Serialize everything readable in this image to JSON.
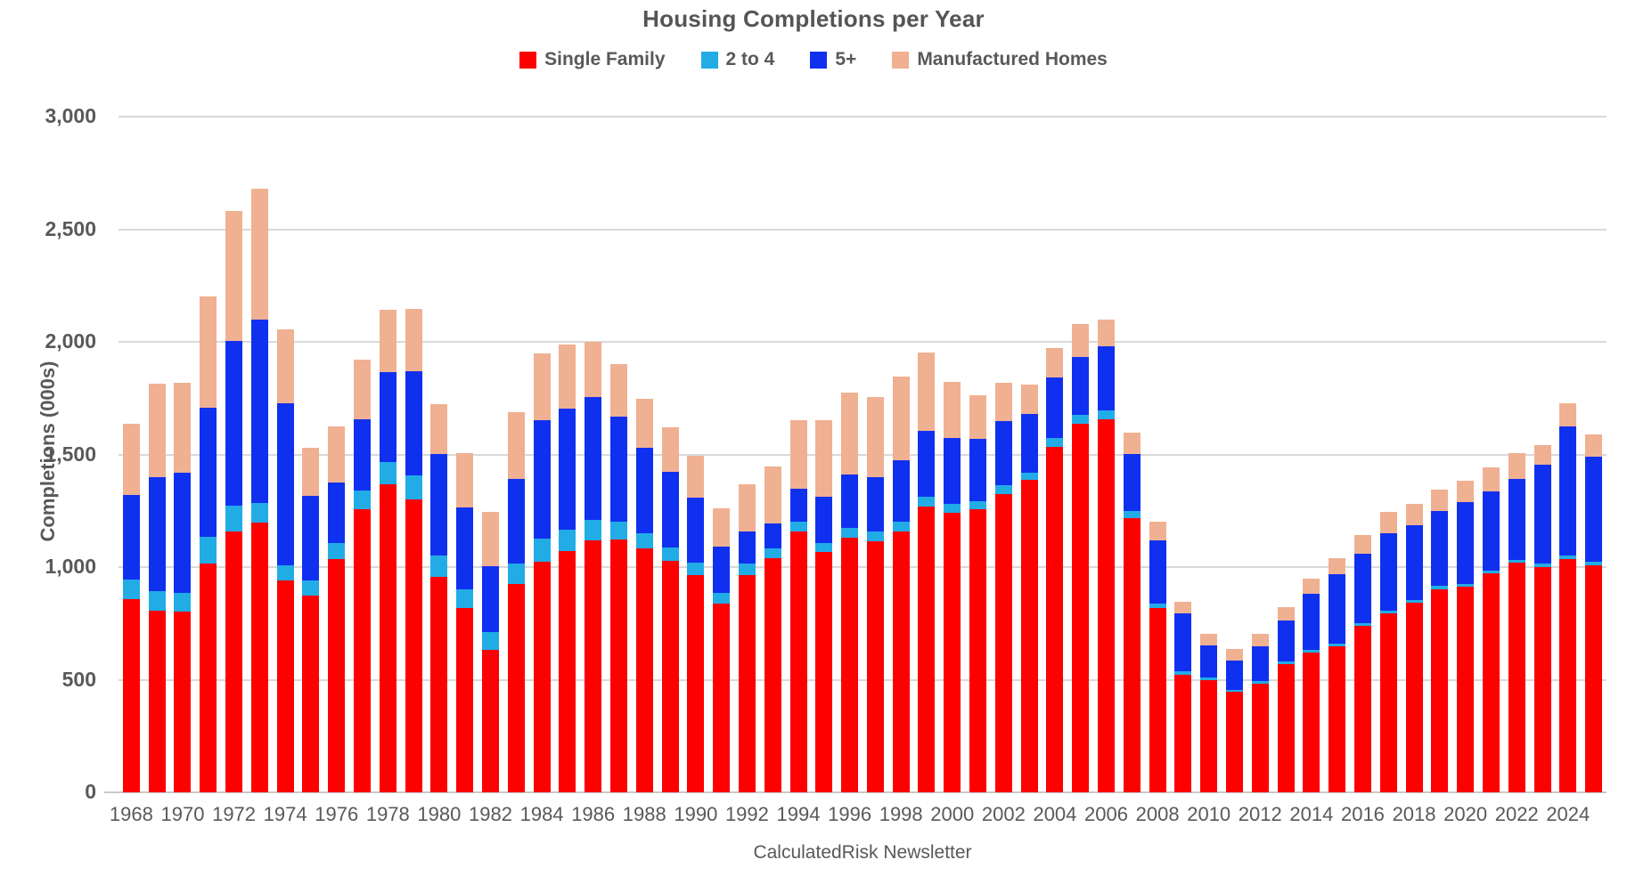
{
  "header": {
    "title": "Housing Completions per Year"
  },
  "legend": {
    "items": [
      {
        "label": "Single Family",
        "color": "#fe0000"
      },
      {
        "label": "2 to 4",
        "color": "#22ace6"
      },
      {
        "label": "5+",
        "color": "#1030f0"
      },
      {
        "label": "Manufactured Homes",
        "color": "#f0b092"
      }
    ]
  },
  "y_axis": {
    "title": "Completions (000s)",
    "ticks": [
      "3,000",
      "2,500",
      "2,000",
      "1,500",
      "1,000",
      "500",
      "0"
    ],
    "max": 3000,
    "step": 500
  },
  "x_axis": {
    "labeled_years": [
      1968,
      1970,
      1972,
      1974,
      1976,
      1978,
      1980,
      1982,
      1984,
      1986,
      1988,
      1990,
      1992,
      1994,
      1996,
      1998,
      2000,
      2002,
      2004,
      2006,
      2008,
      2010,
      2012,
      2014,
      2016,
      2018,
      2020,
      2022,
      2024
    ]
  },
  "footer": {
    "source": "CalculatedRisk Newsletter"
  },
  "chart_data": {
    "type": "bar",
    "stacked": true,
    "title": "Housing Completions per Year",
    "xlabel": "CalculatedRisk Newsletter",
    "ylabel": "Completions (000s)",
    "ylim": [
      0,
      3000
    ],
    "grid": true,
    "legend_position": "top",
    "categories": [
      1968,
      1969,
      1970,
      1971,
      1972,
      1973,
      1974,
      1975,
      1976,
      1977,
      1978,
      1979,
      1980,
      1981,
      1982,
      1983,
      1984,
      1985,
      1986,
      1987,
      1988,
      1989,
      1990,
      1991,
      1992,
      1993,
      1994,
      1995,
      1996,
      1997,
      1998,
      1999,
      2000,
      2001,
      2002,
      2003,
      2004,
      2005,
      2006,
      2007,
      2008,
      2009,
      2010,
      2011,
      2012,
      2013,
      2014,
      2015,
      2016,
      2017,
      2018,
      2019,
      2020,
      2021,
      2022,
      2023,
      2024,
      2025
    ],
    "series": [
      {
        "name": "Single Family",
        "color": "#fe0000",
        "values": [
          859,
          808,
          802,
          1014,
          1160,
          1197,
          940,
          875,
          1034,
          1258,
          1369,
          1301,
          957,
          819,
          632,
          924,
          1025,
          1073,
          1120,
          1123,
          1085,
          1026,
          966,
          838,
          964,
          1039,
          1160,
          1066,
          1129,
          1116,
          1160,
          1270,
          1242,
          1256,
          1325,
          1386,
          1532,
          1636,
          1655,
          1218,
          819,
          521,
          497,
          447,
          483,
          569,
          620,
          648,
          738,
          795,
          840,
          903,
          912,
          971,
          1019,
          999,
          1034,
          1008
        ]
      },
      {
        "name": "2 to 4",
        "color": "#22ace6",
        "values": [
          85,
          85,
          85,
          120,
          113,
          87,
          68,
          64,
          71,
          83,
          98,
          105,
          95,
          81,
          80,
          93,
          100,
          95,
          90,
          79,
          65,
          61,
          54,
          48,
          50,
          44,
          43,
          42,
          45,
          44,
          42,
          42,
          38,
          36,
          38,
          34,
          42,
          41,
          42,
          31,
          18,
          15,
          11,
          9,
          10,
          11,
          13,
          12,
          12,
          12,
          13,
          14,
          12,
          12,
          13,
          15,
          16,
          15
        ]
      },
      {
        "name": "5+",
        "color": "#1030f0",
        "values": [
          376,
          507,
          532,
          572,
          731,
          816,
          720,
          378,
          272,
          316,
          400,
          465,
          450,
          366,
          294,
          373,
          527,
          536,
          546,
          467,
          380,
          335,
          288,
          205,
          144,
          109,
          144,
          205,
          239,
          240,
          272,
          293,
          294,
          279,
          285,
          258,
          268,
          254,
          283,
          253,
          282,
          259,
          144,
          129,
          156,
          184,
          250,
          308,
          310,
          345,
          332,
          333,
          366,
          354,
          361,
          439,
          575,
          469
        ]
      },
      {
        "name": "Manufactured Homes",
        "color": "#f0b092",
        "values": [
          318,
          413,
          401,
          497,
          576,
          580,
          329,
          213,
          246,
          266,
          276,
          277,
          222,
          241,
          240,
          296,
          295,
          284,
          244,
          233,
          218,
          198,
          188,
          171,
          211,
          254,
          304,
          340,
          363,
          354,
          373,
          348,
          250,
          193,
          169,
          131,
          131,
          147,
          117,
          96,
          82,
          50,
          50,
          52,
          55,
          60,
          64,
          71,
          81,
          93,
          97,
          95,
          94,
          106,
          113,
          89,
          103,
          96
        ]
      }
    ]
  }
}
